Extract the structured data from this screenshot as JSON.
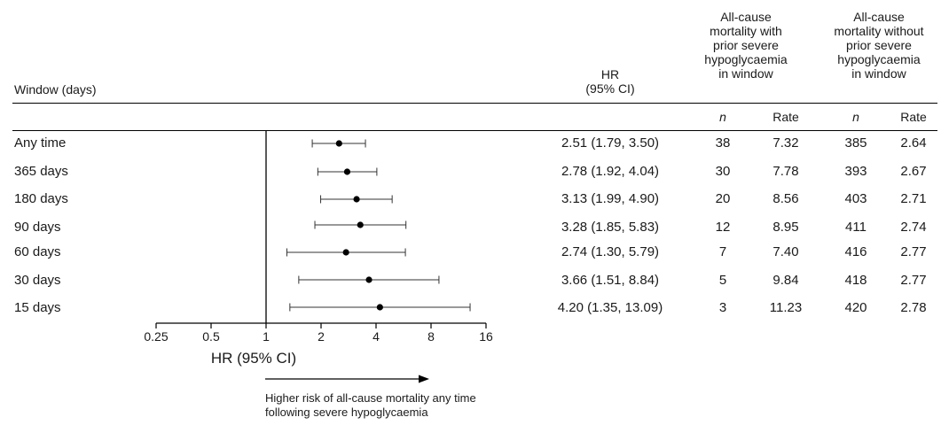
{
  "headers": {
    "window": "Window (days)",
    "hr_line1": "HR",
    "hr_line2": "(95% CI)",
    "with_group": [
      "All-cause",
      "mortality with",
      "prior severe",
      "hypoglycaemia",
      "in window"
    ],
    "without_group": [
      "All-cause",
      "mortality without",
      "prior severe",
      "hypoglycaemia",
      "in window"
    ],
    "n": "n",
    "rate": "Rate"
  },
  "rows": [
    {
      "label": "Any time",
      "hr_text": "2.51 (1.79, 3.50)",
      "n_with": "38",
      "rate_with": "7.32",
      "n_without": "385",
      "rate_without": "2.64"
    },
    {
      "label": "365 days",
      "hr_text": "2.78 (1.92, 4.04)",
      "n_with": "30",
      "rate_with": "7.78",
      "n_without": "393",
      "rate_without": "2.67"
    },
    {
      "label": "180 days",
      "hr_text": "3.13 (1.99, 4.90)",
      "n_with": "20",
      "rate_with": "8.56",
      "n_without": "403",
      "rate_without": "2.71"
    },
    {
      "label": "90 days",
      "hr_text": "3.28 (1.85, 5.83)",
      "n_with": "12",
      "rate_with": "8.95",
      "n_without": "411",
      "rate_without": "2.74"
    },
    {
      "label": "60 days",
      "hr_text": "2.74 (1.30, 5.79)",
      "n_with": "7",
      "rate_with": "7.40",
      "n_without": "416",
      "rate_without": "2.77"
    },
    {
      "label": "30 days",
      "hr_text": "3.66 (1.51, 8.84)",
      "n_with": "5",
      "rate_with": "9.84",
      "n_without": "418",
      "rate_without": "2.77"
    },
    {
      "label": "15 days",
      "hr_text": "4.20 (1.35, 13.09)",
      "n_with": "3",
      "rate_with": "11.23",
      "n_without": "420",
      "rate_without": "2.78"
    }
  ],
  "axis": {
    "label": "HR (95% CI)",
    "arrow_text_line1": "Higher risk of all-cause mortality any time",
    "arrow_text_line2": "following severe hypoglycaemia"
  },
  "chart_data": {
    "type": "forest",
    "xscale": "log2",
    "xlim": [
      0.25,
      16
    ],
    "xticks": [
      0.25,
      0.5,
      1,
      2,
      4,
      8,
      16
    ],
    "xtick_labels": [
      "0.25",
      "0.5",
      "1",
      "2",
      "4",
      "8",
      "16"
    ],
    "reference_line": 1,
    "xlabel": "HR (95% CI)",
    "categories": [
      "Any time",
      "365 days",
      "180 days",
      "90 days",
      "60 days",
      "30 days",
      "15 days"
    ],
    "hr": [
      2.51,
      2.78,
      3.13,
      3.28,
      2.74,
      3.66,
      4.2
    ],
    "ci_lower": [
      1.79,
      1.92,
      1.99,
      1.85,
      1.3,
      1.51,
      1.35
    ],
    "ci_upper": [
      3.5,
      4.04,
      4.9,
      5.83,
      5.79,
      8.84,
      13.09
    ]
  }
}
